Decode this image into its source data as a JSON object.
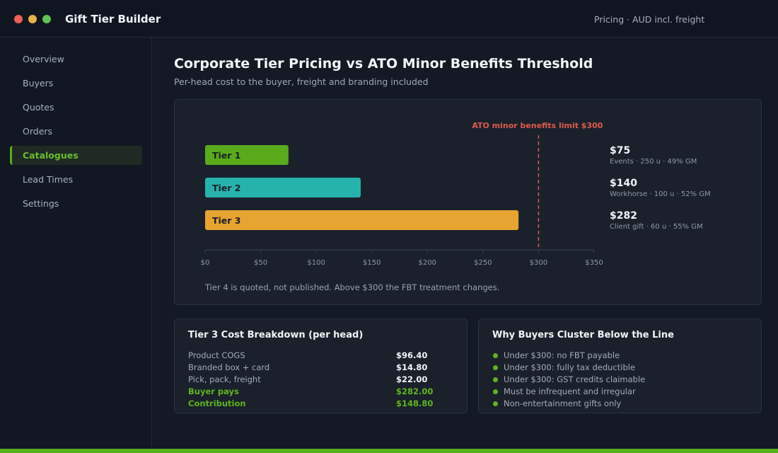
{
  "window": {
    "title": "Gift Tier Builder",
    "header_meta": "Pricing  ·  AUD incl. freight"
  },
  "sidebar": {
    "items": [
      {
        "label": "Overview",
        "active": false
      },
      {
        "label": "Buyers",
        "active": false
      },
      {
        "label": "Quotes",
        "active": false
      },
      {
        "label": "Orders",
        "active": false
      },
      {
        "label": "Catalogues",
        "active": true
      },
      {
        "label": "Lead Times",
        "active": false
      },
      {
        "label": "Settings",
        "active": false
      }
    ]
  },
  "page": {
    "title": "Corporate Tier Pricing vs ATO Minor Benefits Threshold",
    "subtitle": "Per-head cost to the buyer, freight and branding included"
  },
  "chart_data": {
    "type": "bar",
    "orientation": "horizontal",
    "categories": [
      "Tier 1",
      "Tier 2",
      "Tier 3"
    ],
    "values": [
      75,
      140,
      282
    ],
    "value_labels": [
      "$75",
      "$140",
      "$282"
    ],
    "details": [
      "Events  ·  250 u  ·  49% GM",
      "Workhorse  ·  100 u  ·  52% GM",
      "Client gift  ·  60 u  ·  55% GM"
    ],
    "colors": [
      "#5aab1b",
      "#26b3ac",
      "#e8a431"
    ],
    "xlim": [
      0,
      350
    ],
    "xticks": [
      0,
      50,
      100,
      150,
      200,
      250,
      300,
      350
    ],
    "xtick_labels": [
      "$0",
      "$50",
      "$100",
      "$150",
      "$200",
      "$250",
      "$300",
      "$350"
    ],
    "threshold": {
      "value": 300,
      "label": "ATO minor benefits limit  $300",
      "color": "#e05a4e"
    },
    "title": "",
    "xlabel": "",
    "ylabel": "",
    "grid": false,
    "note": "Tier 4 is quoted, not published. Above $300 the FBT treatment changes."
  },
  "breakdown": {
    "title": "Tier 3 Cost Breakdown (per head)",
    "rows": [
      {
        "label": "Product COGS",
        "value": "$96.40",
        "accent": false
      },
      {
        "label": "Branded box + card",
        "value": "$14.80",
        "accent": false
      },
      {
        "label": "Pick, pack, freight",
        "value": "$22.00",
        "accent": false
      },
      {
        "label": "Buyer pays",
        "value": "$282.00",
        "accent": true
      },
      {
        "label": "Contribution",
        "value": "$148.80",
        "accent": true
      }
    ]
  },
  "reasons": {
    "title": "Why Buyers Cluster Below the Line",
    "items": [
      "Under $300: no FBT payable",
      "Under $300: fully tax deductible",
      "Under $300: GST credits claimable",
      "Must be infrequent and irregular",
      "Non-entertainment gifts only"
    ]
  },
  "colors": {
    "accent": "#57ae1b",
    "background": "#131a23",
    "panel": "#1a212b",
    "threshold": "#e05a4e"
  }
}
